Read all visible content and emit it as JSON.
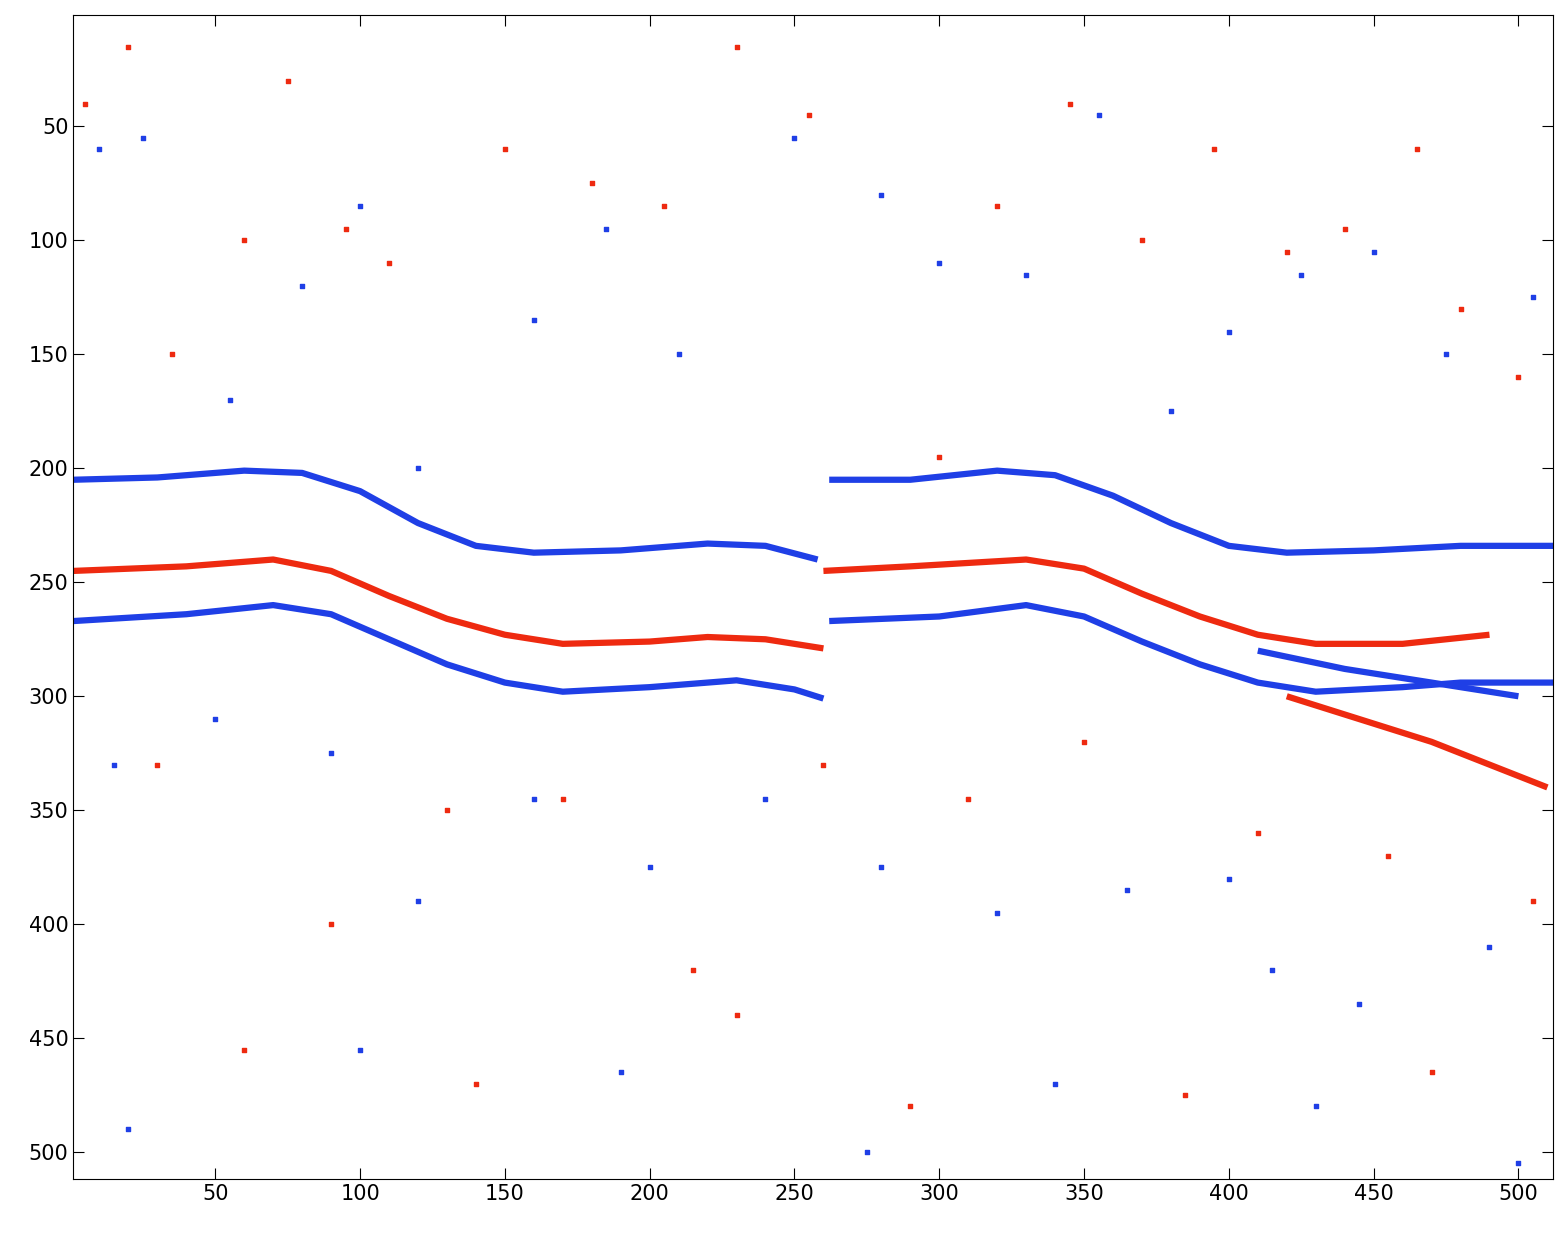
{
  "chart_data": {
    "type": "line",
    "xlim": [
      1,
      512
    ],
    "ylim": [
      512,
      1
    ],
    "xticks": [
      50,
      100,
      150,
      200,
      250,
      300,
      350,
      400,
      450,
      500
    ],
    "yticks": [
      50,
      100,
      150,
      200,
      250,
      300,
      350,
      400,
      450,
      500
    ],
    "grid": false,
    "series": [
      {
        "type": "line",
        "color": "#1f3fe6",
        "line_style": "solid",
        "x": [
          1,
          30,
          60,
          80,
          100,
          120,
          140,
          160,
          190,
          220,
          240,
          258
        ],
        "values": [
          205,
          204,
          201,
          202,
          210,
          224,
          234,
          237,
          236,
          233,
          234,
          240
        ]
      },
      {
        "type": "line",
        "color": "#ee2a10",
        "line_style": "solid",
        "x": [
          1,
          40,
          70,
          90,
          110,
          130,
          150,
          170,
          200,
          220,
          240,
          260
        ],
        "values": [
          245,
          243,
          240,
          245,
          256,
          266,
          273,
          277,
          276,
          274,
          275,
          279
        ]
      },
      {
        "type": "line",
        "color": "#1f3fe6",
        "line_style": "solid",
        "x": [
          1,
          40,
          70,
          90,
          110,
          130,
          150,
          170,
          200,
          230,
          250,
          260
        ],
        "values": [
          267,
          264,
          260,
          264,
          275,
          286,
          294,
          298,
          296,
          293,
          297,
          301
        ]
      },
      {
        "type": "line",
        "color": "#1f3fe6",
        "line_style": "solid",
        "x": [
          262,
          290,
          320,
          340,
          360,
          380,
          400,
          420,
          450,
          480,
          512
        ],
        "values": [
          205,
          205,
          201,
          203,
          212,
          224,
          234,
          237,
          236,
          234,
          234
        ]
      },
      {
        "type": "line",
        "color": "#ee2a10",
        "line_style": "solid",
        "x": [
          260,
          290,
          330,
          350,
          370,
          390,
          410,
          430,
          460,
          490
        ],
        "values": [
          245,
          243,
          240,
          244,
          255,
          265,
          273,
          277,
          277,
          273
        ]
      },
      {
        "type": "line",
        "color": "#1f3fe6",
        "line_style": "solid",
        "x": [
          262,
          300,
          330,
          350,
          370,
          390,
          410,
          430,
          460,
          480,
          512
        ],
        "values": [
          267,
          265,
          260,
          265,
          276,
          286,
          294,
          298,
          296,
          294,
          294
        ]
      },
      {
        "type": "line",
        "color": "#ee2a10",
        "line_style": "solid",
        "x": [
          420,
          445,
          470,
          490,
          510
        ],
        "values": [
          300,
          310,
          320,
          330,
          340
        ]
      },
      {
        "type": "line",
        "color": "#1f3fe6",
        "line_style": "solid",
        "x": [
          410,
          440,
          470,
          500
        ],
        "values": [
          280,
          288,
          294,
          300
        ]
      },
      {
        "type": "scatter",
        "color": "#ee2a10",
        "marker": "s",
        "x": [
          5,
          20,
          35,
          60,
          75,
          95,
          110,
          150,
          180,
          205,
          230,
          255,
          300,
          320,
          345,
          370,
          395,
          420,
          440,
          465,
          480,
          500,
          30,
          90,
          130,
          170,
          215,
          260,
          310,
          350,
          410,
          455,
          505,
          60,
          140,
          230,
          290,
          385,
          470
        ],
        "values": [
          40,
          15,
          150,
          100,
          30,
          95,
          110,
          60,
          75,
          85,
          15,
          45,
          195,
          85,
          40,
          100,
          60,
          105,
          95,
          60,
          130,
          160,
          330,
          400,
          350,
          345,
          420,
          330,
          345,
          320,
          360,
          370,
          390,
          455,
          470,
          440,
          480,
          475,
          465
        ]
      },
      {
        "type": "scatter",
        "color": "#1f3fe6",
        "marker": "s",
        "x": [
          10,
          25,
          55,
          80,
          100,
          120,
          160,
          185,
          210,
          250,
          280,
          300,
          330,
          355,
          380,
          400,
          425,
          450,
          475,
          505,
          15,
          50,
          90,
          120,
          160,
          200,
          240,
          280,
          320,
          365,
          400,
          415,
          445,
          490,
          20,
          100,
          190,
          275,
          340,
          430,
          500
        ],
        "values": [
          60,
          55,
          170,
          120,
          85,
          200,
          135,
          95,
          150,
          55,
          80,
          110,
          115,
          45,
          175,
          140,
          115,
          105,
          150,
          125,
          330,
          310,
          325,
          390,
          345,
          375,
          345,
          375,
          395,
          385,
          380,
          420,
          435,
          410,
          490,
          455,
          465,
          500,
          470,
          480,
          505
        ]
      }
    ]
  }
}
